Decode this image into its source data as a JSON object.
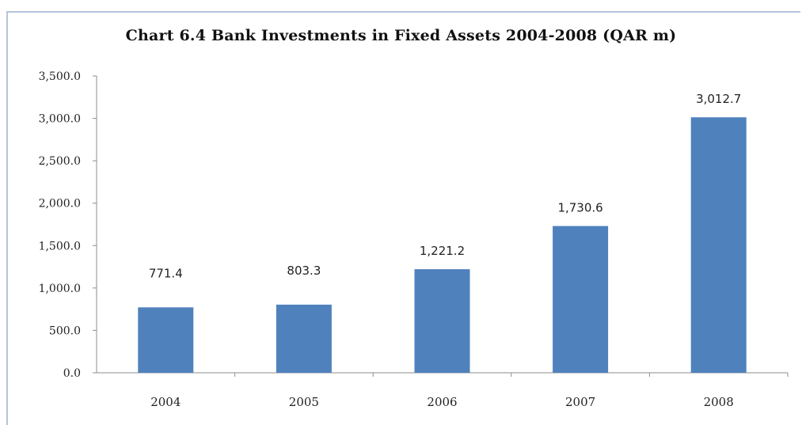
{
  "chart_data": {
    "type": "bar",
    "title": "Chart 6.4 Bank Investments in Fixed Assets 2004-2008 (QAR m)",
    "categories": [
      "2004",
      "2005",
      "2006",
      "2007",
      "2008"
    ],
    "values": [
      771.4,
      803.3,
      1221.2,
      1730.6,
      3012.7
    ],
    "data_labels": [
      "771.4",
      "803.3",
      "1,221.2",
      "1,730.6",
      "3,012.7"
    ],
    "y_ticks": [
      0,
      500,
      1000,
      1500,
      2000,
      2500,
      3000,
      3500
    ],
    "y_tick_labels": [
      "0.0",
      "500.0",
      "1,000.0",
      "1,500.0",
      "2,000.0",
      "2,500.0",
      "3,000.0",
      "3,500.0"
    ],
    "ylim": [
      0,
      3500
    ],
    "xlabel": "",
    "ylabel": "",
    "grid": false,
    "legend": "none",
    "bar_color": "#4f81bd"
  }
}
